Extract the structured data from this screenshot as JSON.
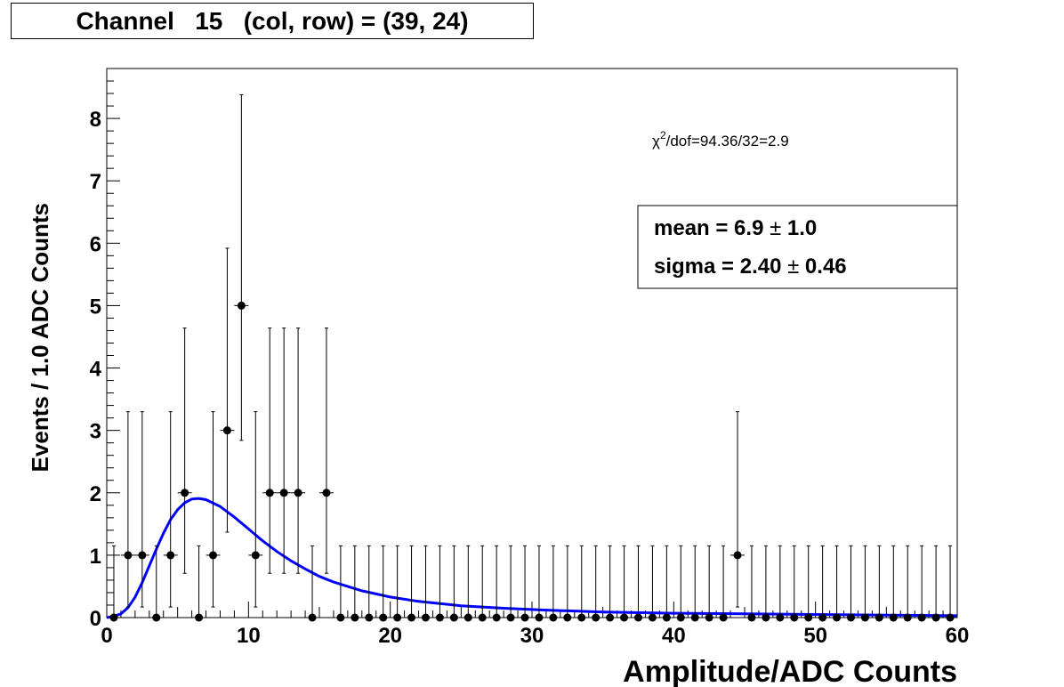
{
  "title": "Channel   15   (col, row) = (39, 24)",
  "chart_data": {
    "type": "scatter",
    "xlabel": "Amplitude/ADC Counts",
    "ylabel": "Events / 1.0 ADC Counts",
    "xlim": [
      0,
      60
    ],
    "ylim": [
      0,
      8.8
    ],
    "x_ticks": [
      "0",
      "10",
      "20",
      "30",
      "40",
      "50",
      "60"
    ],
    "y_ticks": [
      "0",
      "1",
      "2",
      "3",
      "4",
      "5",
      "6",
      "7",
      "8"
    ],
    "points": [
      {
        "x": 0.5,
        "y": 0
      },
      {
        "x": 1.5,
        "y": 1
      },
      {
        "x": 2.5,
        "y": 1
      },
      {
        "x": 3.5,
        "y": 0
      },
      {
        "x": 4.5,
        "y": 1
      },
      {
        "x": 5.5,
        "y": 2
      },
      {
        "x": 6.5,
        "y": 0
      },
      {
        "x": 7.5,
        "y": 1
      },
      {
        "x": 8.5,
        "y": 3
      },
      {
        "x": 9.5,
        "y": 5
      },
      {
        "x": 10.5,
        "y": 1
      },
      {
        "x": 11.5,
        "y": 2
      },
      {
        "x": 12.5,
        "y": 2
      },
      {
        "x": 13.5,
        "y": 2
      },
      {
        "x": 14.5,
        "y": 0
      },
      {
        "x": 15.5,
        "y": 2
      },
      {
        "x": 16.5,
        "y": 0
      },
      {
        "x": 17.5,
        "y": 0
      },
      {
        "x": 18.5,
        "y": 0
      },
      {
        "x": 19.5,
        "y": 0
      },
      {
        "x": 20.5,
        "y": 0
      },
      {
        "x": 21.5,
        "y": 0
      },
      {
        "x": 22.5,
        "y": 0
      },
      {
        "x": 23.5,
        "y": 0
      },
      {
        "x": 24.5,
        "y": 0
      },
      {
        "x": 25.5,
        "y": 0
      },
      {
        "x": 26.5,
        "y": 0
      },
      {
        "x": 27.5,
        "y": 0
      },
      {
        "x": 28.5,
        "y": 0
      },
      {
        "x": 29.5,
        "y": 0
      },
      {
        "x": 30.5,
        "y": 0
      },
      {
        "x": 31.5,
        "y": 0
      },
      {
        "x": 32.5,
        "y": 0
      },
      {
        "x": 33.5,
        "y": 0
      },
      {
        "x": 34.5,
        "y": 0
      },
      {
        "x": 35.5,
        "y": 0
      },
      {
        "x": 36.5,
        "y": 0
      },
      {
        "x": 37.5,
        "y": 0
      },
      {
        "x": 38.5,
        "y": 0
      },
      {
        "x": 39.5,
        "y": 0
      },
      {
        "x": 40.5,
        "y": 0
      },
      {
        "x": 41.5,
        "y": 0
      },
      {
        "x": 42.5,
        "y": 0
      },
      {
        "x": 43.5,
        "y": 0
      },
      {
        "x": 44.5,
        "y": 1
      },
      {
        "x": 45.5,
        "y": 0
      },
      {
        "x": 46.5,
        "y": 0
      },
      {
        "x": 47.5,
        "y": 0
      },
      {
        "x": 48.5,
        "y": 0
      },
      {
        "x": 49.5,
        "y": 0
      },
      {
        "x": 50.5,
        "y": 0
      },
      {
        "x": 51.5,
        "y": 0
      },
      {
        "x": 52.5,
        "y": 0
      },
      {
        "x": 53.5,
        "y": 0
      },
      {
        "x": 54.5,
        "y": 0
      },
      {
        "x": 55.5,
        "y": 0
      },
      {
        "x": 56.5,
        "y": 0
      },
      {
        "x": 57.5,
        "y": 0
      },
      {
        "x": 58.5,
        "y": 0
      },
      {
        "x": 59.5,
        "y": 0
      }
    ],
    "fit": {
      "color": "#0000ff",
      "curve": [
        {
          "x": 0,
          "y": 0
        },
        {
          "x": 0.5,
          "y": 0.02
        },
        {
          "x": 1,
          "y": 0.06
        },
        {
          "x": 1.5,
          "y": 0.16
        },
        {
          "x": 2,
          "y": 0.33
        },
        {
          "x": 2.5,
          "y": 0.56
        },
        {
          "x": 3,
          "y": 0.83
        },
        {
          "x": 3.5,
          "y": 1.1
        },
        {
          "x": 4,
          "y": 1.35
        },
        {
          "x": 4.5,
          "y": 1.57
        },
        {
          "x": 5,
          "y": 1.73
        },
        {
          "x": 5.5,
          "y": 1.84
        },
        {
          "x": 6,
          "y": 1.9
        },
        {
          "x": 6.5,
          "y": 1.91
        },
        {
          "x": 7,
          "y": 1.89
        },
        {
          "x": 8,
          "y": 1.78
        },
        {
          "x": 9,
          "y": 1.61
        },
        {
          "x": 10,
          "y": 1.42
        },
        {
          "x": 11,
          "y": 1.23
        },
        {
          "x": 12,
          "y": 1.06
        },
        {
          "x": 13,
          "y": 0.91
        },
        {
          "x": 14,
          "y": 0.78
        },
        {
          "x": 15,
          "y": 0.66
        },
        {
          "x": 16,
          "y": 0.57
        },
        {
          "x": 18,
          "y": 0.43
        },
        {
          "x": 20,
          "y": 0.33
        },
        {
          "x": 22,
          "y": 0.26
        },
        {
          "x": 25,
          "y": 0.19
        },
        {
          "x": 28,
          "y": 0.15
        },
        {
          "x": 31,
          "y": 0.12
        },
        {
          "x": 35,
          "y": 0.09
        },
        {
          "x": 40,
          "y": 0.07
        },
        {
          "x": 45,
          "y": 0.06
        },
        {
          "x": 50,
          "y": 0.05
        },
        {
          "x": 55,
          "y": 0.04
        },
        {
          "x": 60,
          "y": 0.03
        }
      ]
    },
    "chi2_text": "/dof=94.36/32=2.9",
    "chi2_symbol": "χ",
    "chi2_sup": "2",
    "stats": [
      {
        "label": "mean =  6.9  ",
        "pm": "±",
        "value": " 1.0"
      },
      {
        "label": "sigma =  2.40  ",
        "pm": "±",
        "value": " 0.46"
      }
    ]
  }
}
